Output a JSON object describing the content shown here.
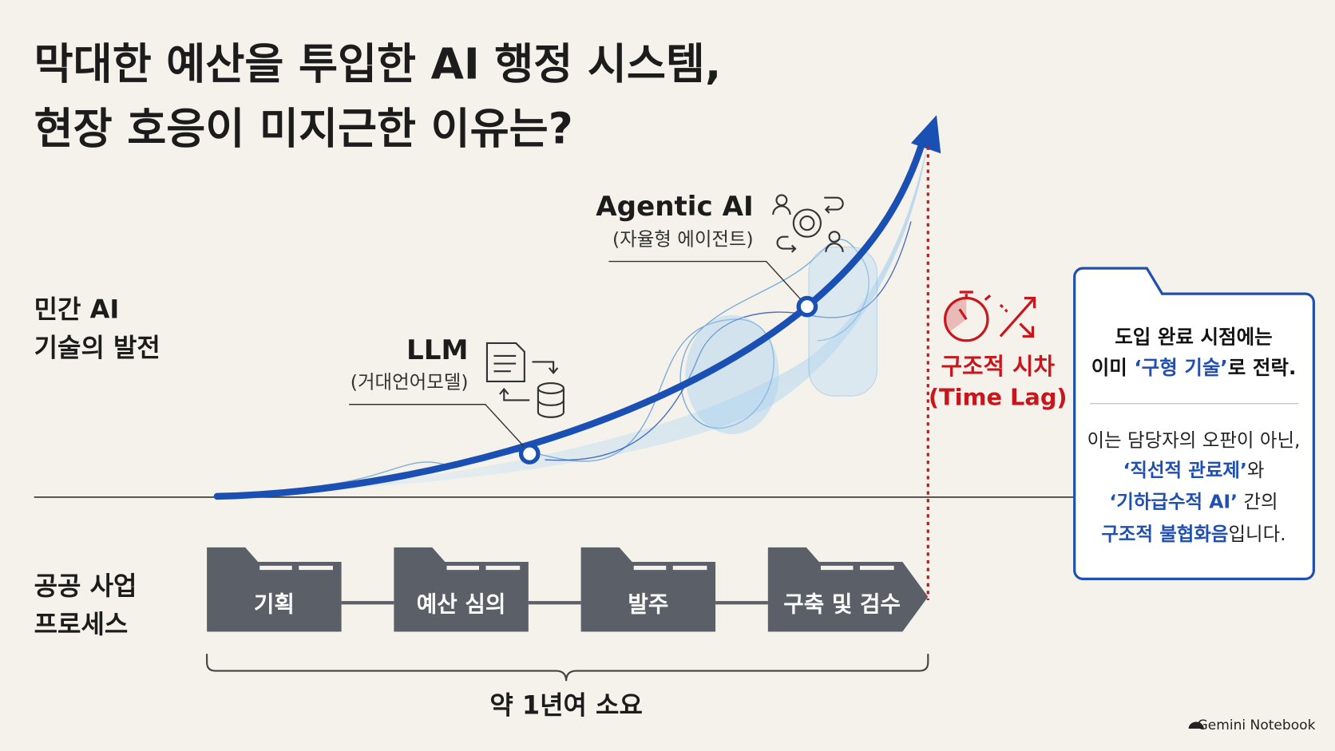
{
  "title": {
    "lines": [
      "막대한 예산을 투입한 AI 행정 시스템,",
      "현장 호응이 미지근한 이유는?"
    ]
  },
  "tracks": {
    "private": [
      "민간 AI",
      "기술의 발전"
    ],
    "public": [
      "공공 사업",
      "프로세스"
    ]
  },
  "milestones": [
    {
      "label": "LLM",
      "sublabel": "(거대언어모델)"
    },
    {
      "label": "Agentic AI",
      "sublabel": "(자율형 에이전트)"
    }
  ],
  "time_lag": [
    "구조적 시차",
    "(Time Lag)"
  ],
  "callout": {
    "lines": [
      [
        {
          "text": "도입 완료 시점에는",
          "highlight": false
        }
      ],
      [
        {
          "text": "이미 ",
          "highlight": false
        },
        {
          "text": "‘구형 기술’",
          "highlight": true
        },
        {
          "text": "로 전락.",
          "highlight": false
        }
      ],
      [
        {
          "text": "이는 담당자의 오판이 아닌,",
          "highlight": false
        }
      ],
      [
        {
          "text": "‘직선적 관료제’",
          "highlight": true
        },
        {
          "text": "와",
          "highlight": false
        }
      ],
      [
        {
          "text": "‘기하급수적 AI’",
          "highlight": true
        },
        {
          "text": " 간의",
          "highlight": false
        }
      ],
      [
        {
          "text": "구조적 불협화음",
          "highlight": true
        },
        {
          "text": "입니다.",
          "highlight": false
        }
      ]
    ]
  },
  "process": {
    "steps": [
      "기획",
      "예산 심의",
      "발주",
      "구축 및 검수"
    ],
    "duration": "약 1년여 소요"
  },
  "brand": "Gemini Notebook"
}
